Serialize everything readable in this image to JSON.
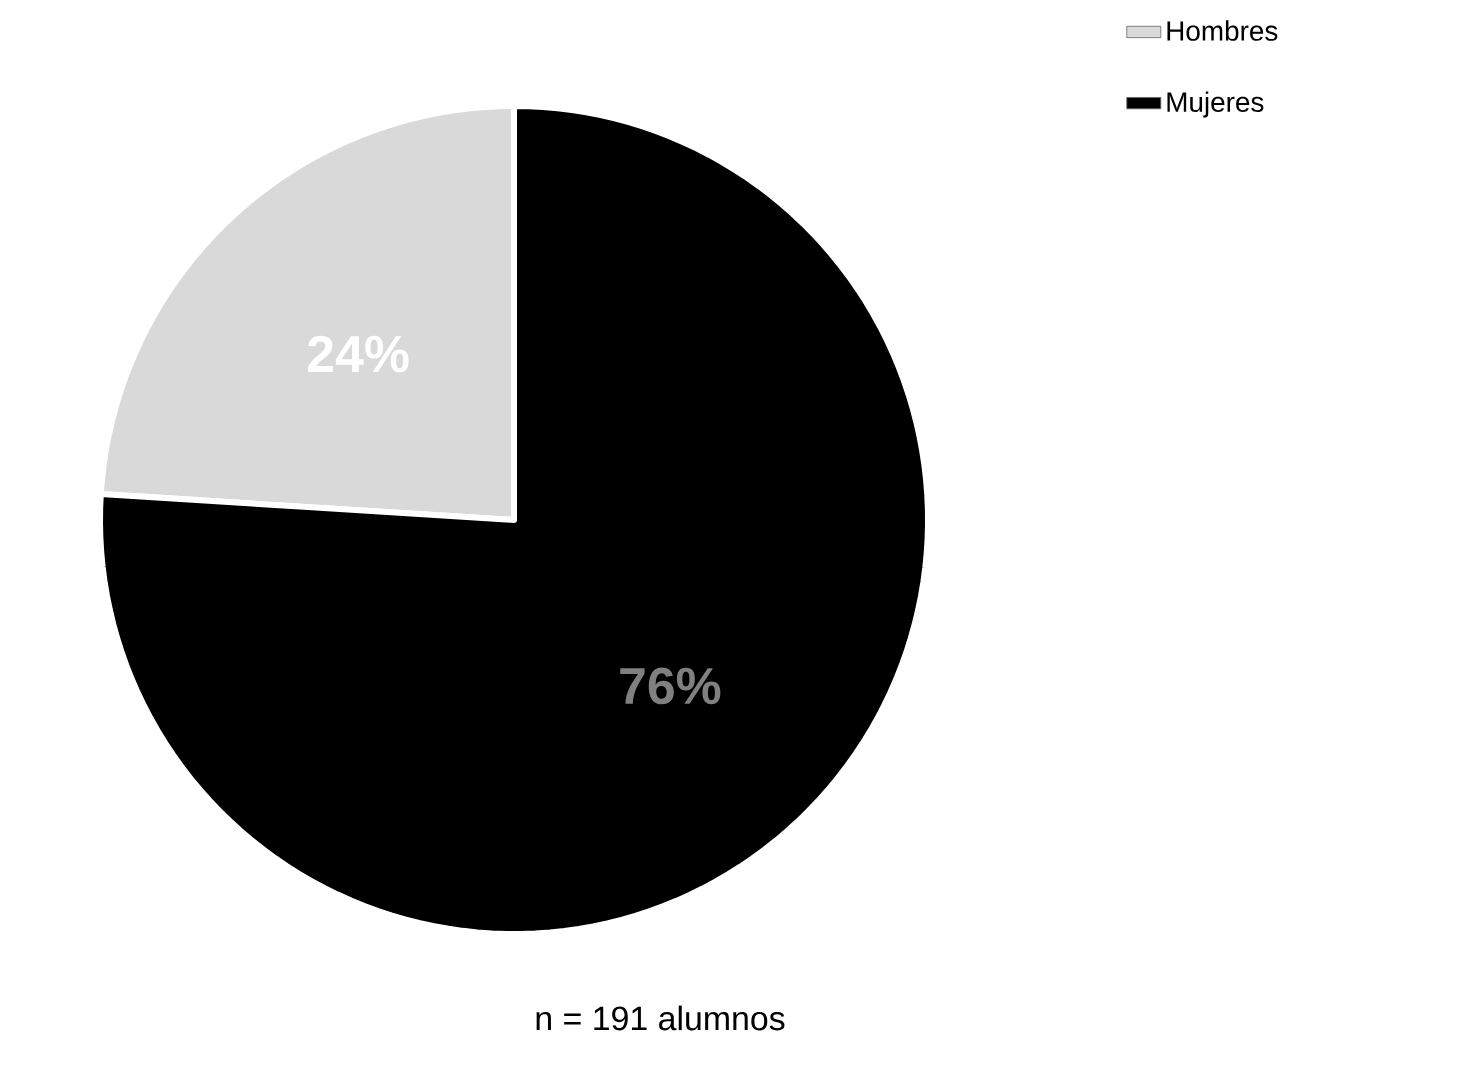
{
  "chart_data": {
    "type": "pie",
    "categories": [
      "Hombres",
      "Mujeres"
    ],
    "values": [
      24,
      76
    ],
    "colors": [
      "#d9d9d9",
      "#000000"
    ],
    "value_labels": [
      "24%",
      "76%"
    ],
    "legend": "top right",
    "annotations": [
      "n = 191 alumnos"
    ]
  }
}
